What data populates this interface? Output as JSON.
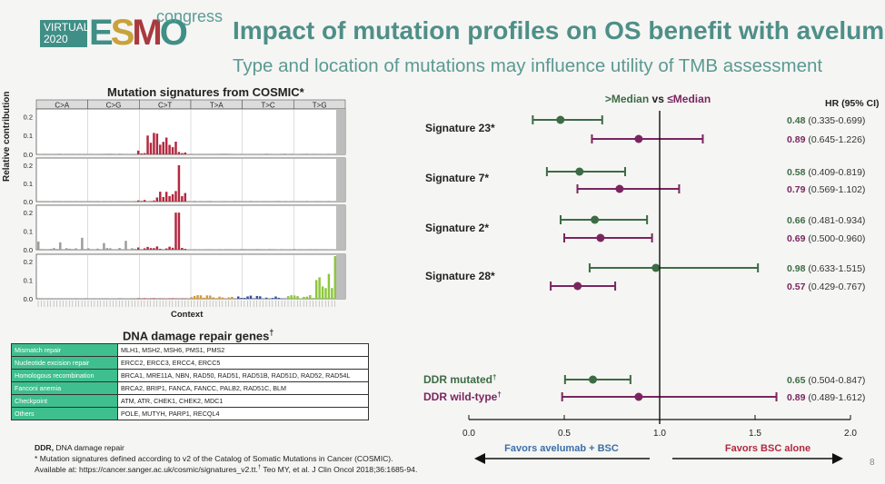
{
  "logo": {
    "virtual": "VIRTUAL",
    "year": "2020",
    "brand": [
      "E",
      "S",
      "M",
      "O"
    ],
    "congress": "congress"
  },
  "title": "Impact of mutation profiles on OS benefit with avelumab",
  "subtitle": "Type and location of mutations may influence utility of TMB assessment",
  "signatures_panel": {
    "title": "Mutation signatures from COSMIC*",
    "y_label": "Relative contribution",
    "x_label": "Context",
    "substitutions": [
      "C>A",
      "C>G",
      "C>T",
      "T>A",
      "T>C",
      "T>G"
    ],
    "y_ticks": [
      "0.2",
      "0.1",
      "0.0"
    ]
  },
  "ddr_genes": {
    "title": "DNA damage repair genes",
    "title_mark": "†",
    "rows": [
      {
        "pathway": "Mismatch repair",
        "genes": "MLH1, MSH2, MSH6, PMS1, PMS2"
      },
      {
        "pathway": "Nucleotide excision repair",
        "genes": "ERCC2, ERCC3, ERCC4, ERCC5"
      },
      {
        "pathway": "Homologous recombination",
        "genes": "BRCA1, MRE11A, NBN, RAD50, RAD51, RAD51B, RAD51D, RAD52, RAD54L"
      },
      {
        "pathway": "Fanconi anemia",
        "genes": "BRCA2, BRIP1, FANCA, FANCC, PALB2, RAD51C, BLM"
      },
      {
        "pathway": "Checkpoint",
        "genes": "ATM, ATR, CHEK1, CHEK2, MDC1"
      },
      {
        "pathway": "Others",
        "genes": "POLE, MUTYH, PARP1, RECQL4"
      }
    ]
  },
  "footnotes": {
    "abbrev_term": "DDR,",
    "abbrev_def": " DNA damage repair",
    "line2": "* Mutation signatures defined according to v2 of the Catalog of Somatic Mutations in Cancer (COSMIC).",
    "line3a": "Available at: https://cancer.sanger.ac.uk/cosmic/signatures_v2.tt.",
    "line3_mark": "†",
    "line3b": " Teo MY, et al. J Clin Oncol 2018;36:1685-94."
  },
  "page_number": "8",
  "chart_data": {
    "type": "forest",
    "legend": {
      "above": ">Median",
      "vs": " vs ",
      "below": "≤Median"
    },
    "hr_header": "HR (95% CI)",
    "xlim": [
      0.0,
      2.0
    ],
    "x_ticks": [
      "0.0",
      "0.5",
      "1.0",
      "1.5",
      "2.0"
    ],
    "reference_line": 1.0,
    "favors_left": "Favors avelumab + BSC",
    "favors_right": "Favors BSC alone",
    "colors": {
      "above": "#3d6b45",
      "below": "#7a2560",
      "favors_left": "#3c6fa8",
      "favors_right": "#b3283f"
    },
    "groups": [
      {
        "label": "Signature 23*",
        "rows": [
          {
            "series": "above",
            "hr": 0.48,
            "lo": 0.335,
            "hi": 0.699,
            "hr_text": "0.48",
            "ci_text": "(0.335-0.699)"
          },
          {
            "series": "below",
            "hr": 0.89,
            "lo": 0.645,
            "hi": 1.226,
            "hr_text": "0.89",
            "ci_text": "(0.645-1.226)"
          }
        ]
      },
      {
        "label": "Signature 7*",
        "rows": [
          {
            "series": "above",
            "hr": 0.58,
            "lo": 0.409,
            "hi": 0.819,
            "hr_text": "0.58",
            "ci_text": "(0.409-0.819)"
          },
          {
            "series": "below",
            "hr": 0.79,
            "lo": 0.569,
            "hi": 1.102,
            "hr_text": "0.79",
            "ci_text": "(0.569-1.102)"
          }
        ]
      },
      {
        "label": "Signature 2*",
        "rows": [
          {
            "series": "above",
            "hr": 0.66,
            "lo": 0.481,
            "hi": 0.934,
            "hr_text": "0.66",
            "ci_text": "(0.481-0.934)"
          },
          {
            "series": "below",
            "hr": 0.69,
            "lo": 0.5,
            "hi": 0.96,
            "hr_text": "0.69",
            "ci_text": "(0.500-0.960)"
          }
        ]
      },
      {
        "label": "Signature 28*",
        "rows": [
          {
            "series": "above",
            "hr": 0.98,
            "lo": 0.633,
            "hi": 1.515,
            "hr_text": "0.98",
            "ci_text": "(0.633-1.515)"
          },
          {
            "series": "below",
            "hr": 0.57,
            "lo": 0.429,
            "hi": 0.767,
            "hr_text": "0.57",
            "ci_text": "(0.429-0.767)"
          }
        ]
      },
      {
        "label": "",
        "rows": [
          {
            "series": "above",
            "label": "DDR mutated",
            "mark": "†",
            "hr": 0.65,
            "lo": 0.504,
            "hi": 0.847,
            "hr_text": "0.65",
            "ci_text": "(0.504-0.847)"
          },
          {
            "series": "below",
            "label": "DDR wild-type",
            "mark": "†",
            "hr": 0.89,
            "lo": 0.489,
            "hi": 1.612,
            "hr_text": "0.89",
            "ci_text": "(0.489-1.612)"
          }
        ]
      }
    ]
  }
}
